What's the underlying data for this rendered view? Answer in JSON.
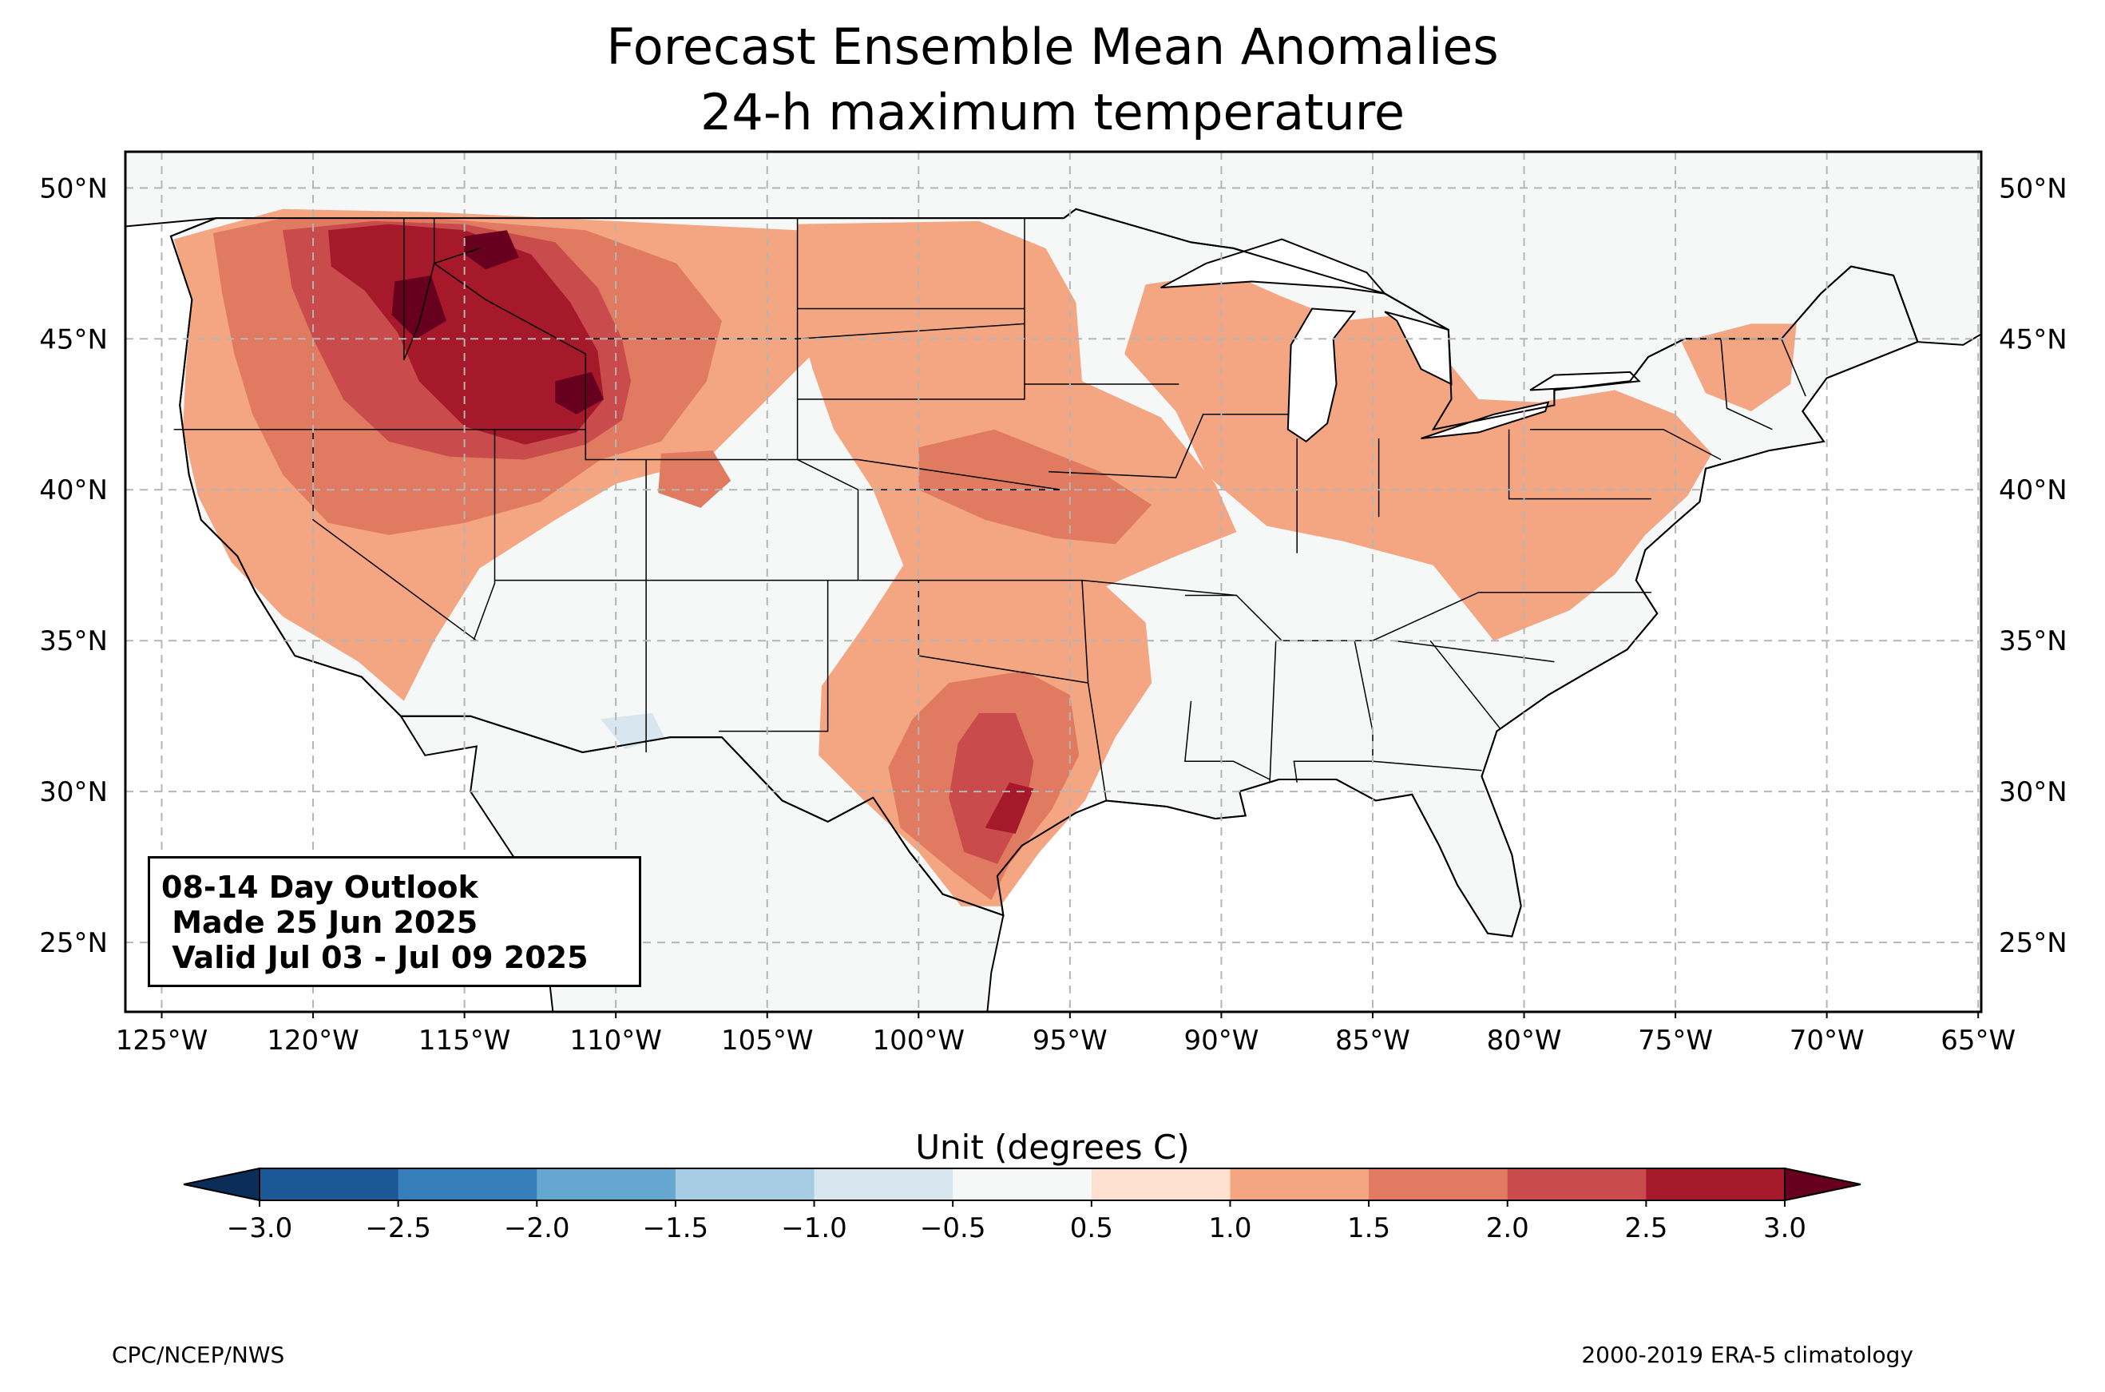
{
  "title": {
    "line1": "Forecast Ensemble Mean Anomalies",
    "line2": "24-h maximum temperature"
  },
  "map": {
    "lon_range": [
      -126.2,
      -64.9
    ],
    "lat_range": [
      22.7,
      51.2
    ],
    "lon_ticks": [
      -125,
      -120,
      -115,
      -110,
      -105,
      -100,
      -95,
      -90,
      -85,
      -80,
      -75,
      -70,
      -65
    ],
    "lon_tick_labels": [
      "125°W",
      "120°W",
      "115°W",
      "110°W",
      "105°W",
      "100°W",
      "95°W",
      "90°W",
      "85°W",
      "80°W",
      "75°W",
      "70°W",
      "65°W"
    ],
    "lat_ticks": [
      25,
      30,
      35,
      40,
      45,
      50
    ],
    "lat_tick_labels": [
      "25°N",
      "30°N",
      "35°N",
      "40°N",
      "45°N",
      "50°N"
    ],
    "gridlines": true,
    "land_color": "#f6f7f7",
    "anomaly_regions": [
      {
        "name": "northwest-1.0",
        "level": 1.0,
        "points": [
          [
            -124.6,
            48.3
          ],
          [
            -121,
            49.3
          ],
          [
            -116,
            49.2
          ],
          [
            -110,
            48.9
          ],
          [
            -104,
            48.6
          ],
          [
            -101,
            46.6
          ],
          [
            -103,
            45
          ],
          [
            -105,
            43
          ],
          [
            -107,
            41
          ],
          [
            -110,
            40.2
          ],
          [
            -112,
            39
          ],
          [
            -114.5,
            37.4
          ],
          [
            -116,
            35
          ],
          [
            -117,
            33
          ],
          [
            -118.5,
            34.3
          ],
          [
            -121,
            35.8
          ],
          [
            -122.7,
            37.6
          ],
          [
            -123.8,
            39.8
          ],
          [
            -124.3,
            42
          ],
          [
            -124.2,
            44
          ],
          [
            -124,
            46.2
          ]
        ]
      },
      {
        "name": "northwest-1.5",
        "level": 1.5,
        "points": [
          [
            -123.3,
            48.5
          ],
          [
            -121,
            49
          ],
          [
            -116,
            49
          ],
          [
            -111,
            48.6
          ],
          [
            -108,
            47.5
          ],
          [
            -106.5,
            45.6
          ],
          [
            -107,
            43.6
          ],
          [
            -108.5,
            41.6
          ],
          [
            -110.5,
            41
          ],
          [
            -112.5,
            39.6
          ],
          [
            -115,
            38.9
          ],
          [
            -117.5,
            38.5
          ],
          [
            -119.5,
            38.9
          ],
          [
            -121,
            40.5
          ],
          [
            -122,
            42.5
          ],
          [
            -122.6,
            44.5
          ],
          [
            -123,
            46.5
          ]
        ]
      },
      {
        "name": "northwest-2.0",
        "level": 2.0,
        "points": [
          [
            -121,
            48.6
          ],
          [
            -118,
            48.9
          ],
          [
            -115,
            48.8
          ],
          [
            -112,
            48.2
          ],
          [
            -110.6,
            46.7
          ],
          [
            -109.8,
            45
          ],
          [
            -109.5,
            43.6
          ],
          [
            -109.8,
            42.3
          ],
          [
            -111,
            41.5
          ],
          [
            -113,
            41
          ],
          [
            -115.5,
            41.1
          ],
          [
            -117.5,
            41.6
          ],
          [
            -119,
            43
          ],
          [
            -120,
            45
          ],
          [
            -120.7,
            46.7
          ]
        ]
      },
      {
        "name": "northwest-2.5",
        "level": 2.5,
        "points": [
          [
            -119.5,
            48.6
          ],
          [
            -117.5,
            48.8
          ],
          [
            -115,
            48.6
          ],
          [
            -112.8,
            47.8
          ],
          [
            -111.5,
            46.2
          ],
          [
            -110.6,
            44.6
          ],
          [
            -110.4,
            43
          ],
          [
            -111.3,
            41.9
          ],
          [
            -113,
            41.5
          ],
          [
            -115,
            42.1
          ],
          [
            -116.5,
            43.6
          ],
          [
            -117.2,
            45.2
          ],
          [
            -118.3,
            46.6
          ],
          [
            -119.4,
            47.4
          ]
        ]
      },
      {
        "name": "northwest-3.0",
        "level": 3.0,
        "points": [
          [
            -117.3,
            46.9
          ],
          [
            -116.1,
            47.1
          ],
          [
            -115.6,
            45.6
          ],
          [
            -116.6,
            45
          ],
          [
            -117.4,
            45.8
          ]
        ]
      },
      {
        "name": "montana-3.0",
        "level": 3.0,
        "points": [
          [
            -115,
            48.4
          ],
          [
            -113.6,
            48.6
          ],
          [
            -113.2,
            47.7
          ],
          [
            -114.3,
            47.3
          ],
          [
            -115,
            47.8
          ]
        ]
      },
      {
        "name": "wyoming-3.0",
        "level": 3.0,
        "points": [
          [
            -112,
            43.6
          ],
          [
            -110.8,
            43.9
          ],
          [
            -110.4,
            43
          ],
          [
            -111.3,
            42.5
          ],
          [
            -112,
            42.9
          ]
        ]
      },
      {
        "name": "colorado-1.5",
        "level": 1.5,
        "points": [
          [
            -108.5,
            41.2
          ],
          [
            -106.8,
            41.3
          ],
          [
            -106.2,
            40.3
          ],
          [
            -107.2,
            39.4
          ],
          [
            -108.6,
            39.9
          ]
        ]
      },
      {
        "name": "plains-1.0",
        "level": 1.0,
        "points": [
          [
            -104,
            48.8
          ],
          [
            -98,
            48.9
          ],
          [
            -95.8,
            48
          ],
          [
            -94.8,
            46.2
          ],
          [
            -94.6,
            43.6
          ],
          [
            -92,
            42.4
          ],
          [
            -90.2,
            40.2
          ],
          [
            -89.5,
            38.6
          ],
          [
            -91.5,
            37.8
          ],
          [
            -93.8,
            36.8
          ],
          [
            -92.5,
            35.6
          ],
          [
            -92.3,
            33.6
          ],
          [
            -93.5,
            31.8
          ],
          [
            -94.5,
            29.7
          ],
          [
            -96,
            28
          ],
          [
            -97.3,
            26.2
          ],
          [
            -98.6,
            26.2
          ],
          [
            -100,
            28
          ],
          [
            -101.8,
            29.7
          ],
          [
            -103.3,
            31.2
          ],
          [
            -103.2,
            33.5
          ],
          [
            -101.8,
            35.5
          ],
          [
            -100.5,
            37.5
          ],
          [
            -101.5,
            40
          ],
          [
            -102.8,
            42
          ],
          [
            -103.5,
            44
          ],
          [
            -104.2,
            46.5
          ]
        ]
      },
      {
        "name": "plains-1.5",
        "level": 1.5,
        "points": [
          [
            -100,
            41.4
          ],
          [
            -97.5,
            42
          ],
          [
            -95.5,
            41.2
          ],
          [
            -94,
            40.6
          ],
          [
            -92.3,
            39.5
          ],
          [
            -93.5,
            38.2
          ],
          [
            -95.5,
            38.4
          ],
          [
            -97.8,
            39
          ],
          [
            -100,
            40
          ]
        ]
      },
      {
        "name": "texas-1.5",
        "level": 1.5,
        "points": [
          [
            -99,
            33.6
          ],
          [
            -96.5,
            34
          ],
          [
            -95,
            33.2
          ],
          [
            -94.7,
            31.2
          ],
          [
            -95.6,
            29.4
          ],
          [
            -97,
            27.6
          ],
          [
            -97.6,
            26.4
          ],
          [
            -98.8,
            27.3
          ],
          [
            -100.6,
            28.8
          ],
          [
            -101,
            30.8
          ],
          [
            -100.2,
            32.4
          ]
        ]
      },
      {
        "name": "texas-2.0",
        "level": 2.0,
        "points": [
          [
            -98,
            32.6
          ],
          [
            -96.8,
            32.6
          ],
          [
            -96.2,
            31
          ],
          [
            -96.5,
            29.3
          ],
          [
            -97.4,
            27.6
          ],
          [
            -98.5,
            28
          ],
          [
            -99,
            29.8
          ],
          [
            -98.7,
            31.6
          ]
        ]
      },
      {
        "name": "texas-2.5",
        "level": 2.5,
        "points": [
          [
            -97,
            30.3
          ],
          [
            -96.2,
            30.1
          ],
          [
            -96.8,
            28.6
          ],
          [
            -97.8,
            28.8
          ]
        ]
      },
      {
        "name": "midwest-1.0",
        "level": 1.0,
        "points": [
          [
            -92.5,
            46.8
          ],
          [
            -89.8,
            47.2
          ],
          [
            -88,
            46.4
          ],
          [
            -86,
            45.6
          ],
          [
            -84,
            45.8
          ],
          [
            -82.8,
            44.6
          ],
          [
            -81.5,
            43
          ],
          [
            -79.5,
            42.9
          ],
          [
            -77,
            43.3
          ],
          [
            -75,
            42.5
          ],
          [
            -73.8,
            41.2
          ],
          [
            -74.6,
            39.8
          ],
          [
            -76,
            38.5
          ],
          [
            -77,
            37.2
          ],
          [
            -78.5,
            36
          ],
          [
            -81,
            35
          ],
          [
            -83,
            37.5
          ],
          [
            -86,
            38.3
          ],
          [
            -88.5,
            38.8
          ],
          [
            -90.5,
            40.5
          ],
          [
            -91.5,
            42.6
          ],
          [
            -93.2,
            44.5
          ]
        ]
      },
      {
        "name": "northeast-1.0",
        "level": 1.0,
        "points": [
          [
            -74.8,
            44.9
          ],
          [
            -72.5,
            45.5
          ],
          [
            -71,
            45.5
          ],
          [
            -71.2,
            43.5
          ],
          [
            -72.5,
            42.6
          ],
          [
            -74,
            43.2
          ]
        ]
      },
      {
        "name": "southwest-cool",
        "level": -1.0,
        "points": [
          [
            -110.5,
            32.4
          ],
          [
            -108.8,
            32.6
          ],
          [
            -108.4,
            31.8
          ],
          [
            -109.7,
            31.4
          ]
        ]
      }
    ],
    "state_borders": [
      [
        [
          -124.6,
          42
        ],
        [
          -117,
          42
        ],
        [
          -111,
          42
        ],
        [
          -111,
          41
        ],
        [
          -104,
          41
        ],
        [
          -102,
          41
        ],
        [
          -95.3,
          40
        ]
      ],
      [
        [
          -120,
          42
        ],
        [
          -120,
          39
        ],
        [
          -114.6,
          35
        ]
      ],
      [
        [
          -117,
          49
        ],
        [
          -117,
          44.3
        ],
        [
          -116.5,
          45.5
        ],
        [
          -116,
          47.5
        ],
        [
          -114.5,
          48
        ]
      ],
      [
        [
          -116,
          49
        ],
        [
          -116,
          47.5
        ],
        [
          -114.3,
          46.3
        ],
        [
          -111,
          44.5
        ],
        [
          -111,
          41
        ]
      ],
      [
        [
          -114,
          42
        ],
        [
          -114,
          36.9
        ],
        [
          -114.7,
          35
        ]
      ],
      [
        [
          -114,
          37
        ],
        [
          -109,
          37
        ],
        [
          -103,
          37
        ],
        [
          -102,
          37
        ],
        [
          -94.6,
          37
        ],
        [
          -89.5,
          36.5
        ]
      ],
      [
        [
          -109,
          41
        ],
        [
          -109,
          31.3
        ]
      ],
      [
        [
          -104,
          49
        ],
        [
          -104,
          41
        ],
        [
          -102,
          40
        ],
        [
          -102,
          37
        ]
      ],
      [
        [
          -111,
          45
        ],
        [
          -104,
          45
        ],
        [
          -96.5,
          45.5
        ]
      ],
      [
        [
          -104,
          46
        ],
        [
          -96.5,
          46
        ]
      ],
      [
        [
          -104,
          43
        ],
        [
          -96.5,
          43
        ],
        [
          -96.5,
          49
        ]
      ],
      [
        [
          -103,
          37
        ],
        [
          -103,
          32
        ],
        [
          -106.6,
          32
        ]
      ],
      [
        [
          -102,
          40
        ],
        [
          -95.3,
          40
        ]
      ],
      [
        [
          -100,
          37
        ],
        [
          -100,
          34.5
        ],
        [
          -94.4,
          33.6
        ]
      ],
      [
        [
          -94.6,
          37
        ],
        [
          -94.4,
          33.6
        ],
        [
          -94,
          31
        ],
        [
          -93.8,
          29.7
        ]
      ],
      [
        [
          -91.4,
          43.5
        ],
        [
          -96.5,
          43.5
        ]
      ],
      [
        [
          -95.7,
          40.6
        ],
        [
          -91.5,
          40.4
        ],
        [
          -90.6,
          42.5
        ],
        [
          -87.8,
          42.5
        ]
      ],
      [
        [
          -91.2,
          36.5
        ],
        [
          -89.5,
          36.5
        ],
        [
          -88,
          35
        ],
        [
          -85,
          35
        ],
        [
          -81.5,
          36.6
        ],
        [
          -75.8,
          36.6
        ]
      ],
      [
        [
          -91,
          33
        ],
        [
          -91.2,
          31
        ],
        [
          -89.6,
          31
        ],
        [
          -88.4,
          30.4
        ]
      ],
      [
        [
          -88.2,
          35
        ],
        [
          -88.4,
          30.3
        ]
      ],
      [
        [
          -85.6,
          35
        ],
        [
          -85,
          32
        ],
        [
          -85,
          31
        ],
        [
          -87.6,
          31
        ],
        [
          -87.5,
          30.3
        ]
      ],
      [
        [
          -85,
          31
        ],
        [
          -81.4,
          30.7
        ]
      ],
      [
        [
          -83.1,
          35
        ],
        [
          -80.8,
          32.1
        ]
      ],
      [
        [
          -84.3,
          35
        ],
        [
          -79,
          34.3
        ]
      ],
      [
        [
          -87.5,
          41.7
        ],
        [
          -87.5,
          37.9
        ]
      ],
      [
        [
          -84.8,
          41.7
        ],
        [
          -84.8,
          39.1
        ]
      ],
      [
        [
          -80.5,
          42
        ],
        [
          -80.5,
          39.7
        ],
        [
          -75.8,
          39.7
        ]
      ],
      [
        [
          -79.8,
          42
        ],
        [
          -75.4,
          42
        ],
        [
          -73.5,
          41
        ]
      ],
      [
        [
          -73.5,
          45
        ],
        [
          -73.3,
          42.7
        ],
        [
          -71.8,
          42
        ]
      ],
      [
        [
          -71.5,
          45
        ],
        [
          -70.7,
          43.1
        ]
      ]
    ]
  },
  "info_box": {
    "line1": "08-14 Day Outlook",
    "line2": " Made 25 Jun 2025",
    "line3": " Valid Jul 03 - Jul 09 2025"
  },
  "colorbar": {
    "title": "Unit (degrees C)",
    "tick_labels": [
      "−3.0",
      "−2.5",
      "−2.0",
      "−1.5",
      "−1.0",
      "−0.5",
      "0.5",
      "1.0",
      "1.5",
      "2.0",
      "2.5",
      "3.0"
    ],
    "colors": [
      "#1c5796",
      "#357ebb",
      "#66a7d2",
      "#a6cde3",
      "#d8e7ef",
      "#f6f7f7",
      "#fde0cf",
      "#f4a582",
      "#e07b61",
      "#c94b4b",
      "#a5192a"
    ],
    "extend_low_color": "#0b2e59",
    "extend_high_color": "#67001f"
  },
  "footer": {
    "left": "CPC/NCEP/NWS",
    "right": "2000-2019 ERA-5 climatology"
  }
}
